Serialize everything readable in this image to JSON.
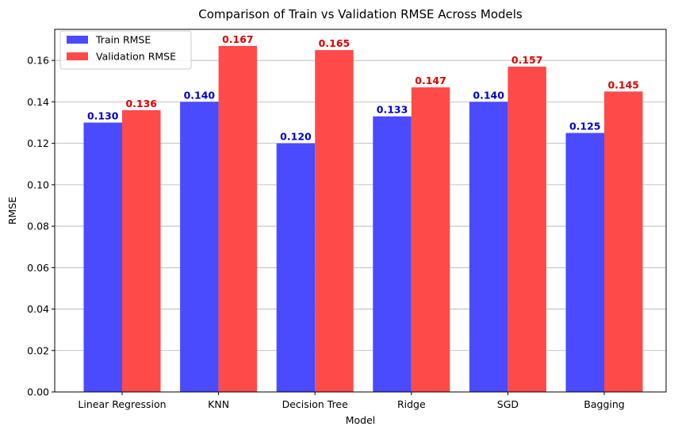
{
  "chart_data": {
    "type": "bar",
    "title": "Comparison of Train vs Validation RMSE Across Models",
    "xlabel": "Model",
    "ylabel": "RMSE",
    "categories": [
      "Linear Regression",
      "KNN",
      "Decision Tree",
      "Ridge",
      "SGD",
      "Bagging"
    ],
    "series": [
      {
        "name": "Train RMSE",
        "color": "#4a4aff",
        "label_color": "#0000cc",
        "values": [
          0.13,
          0.14,
          0.12,
          0.133,
          0.14,
          0.125
        ],
        "labels": [
          "0.130",
          "0.140",
          "0.120",
          "0.133",
          "0.140",
          "0.125"
        ]
      },
      {
        "name": "Validation RMSE",
        "color": "#ff4a4a",
        "label_color": "#e00000",
        "values": [
          0.136,
          0.167,
          0.165,
          0.147,
          0.157,
          0.145
        ],
        "labels": [
          "0.136",
          "0.167",
          "0.165",
          "0.147",
          "0.157",
          "0.145"
        ]
      }
    ],
    "ylim": [
      0,
      0.175
    ],
    "yticks": [
      0.0,
      0.02,
      0.04,
      0.06,
      0.08,
      0.1,
      0.12,
      0.14,
      0.16
    ],
    "ytick_labels": [
      "0.00",
      "0.02",
      "0.04",
      "0.06",
      "0.08",
      "0.10",
      "0.12",
      "0.14",
      "0.16"
    ],
    "grid": "y",
    "legend_position": "top-left"
  }
}
